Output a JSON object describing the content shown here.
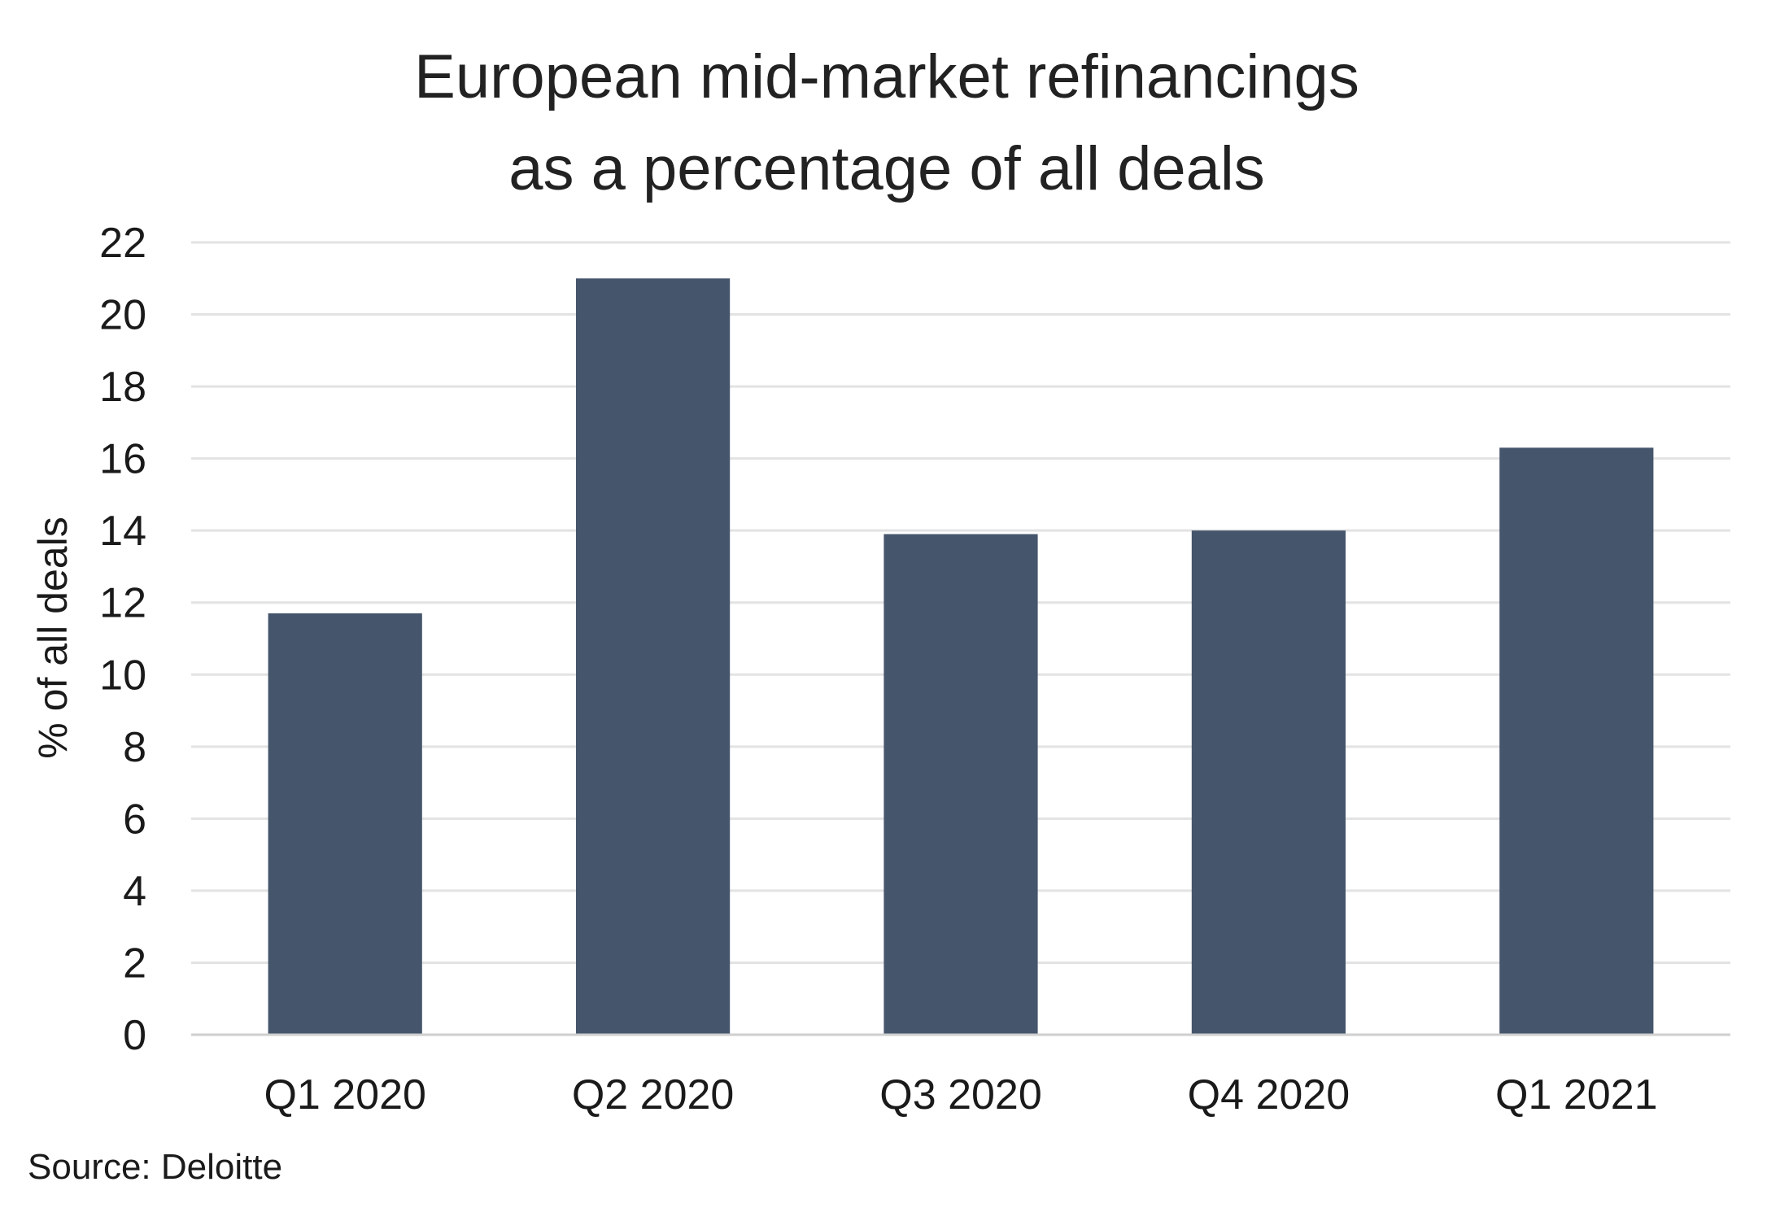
{
  "chart_data": {
    "type": "bar",
    "title_lines": [
      "European mid-market refinancings",
      "as a percentage of all deals"
    ],
    "ylabel": "% of all deals",
    "xlabel": "",
    "categories": [
      "Q1 2020",
      "Q2 2020",
      "Q3 2020",
      "Q4 2020",
      "Q1 2021"
    ],
    "values": [
      11.7,
      21.0,
      13.9,
      14.0,
      16.3
    ],
    "ylim": [
      0,
      22
    ],
    "yticks": [
      "0",
      "2",
      "4",
      "6",
      "8",
      "10",
      "12",
      "14",
      "16",
      "18",
      "20",
      "22"
    ],
    "grid": true,
    "legend": "none",
    "bar_color": "#45556b",
    "source": "Source: Deloitte"
  }
}
